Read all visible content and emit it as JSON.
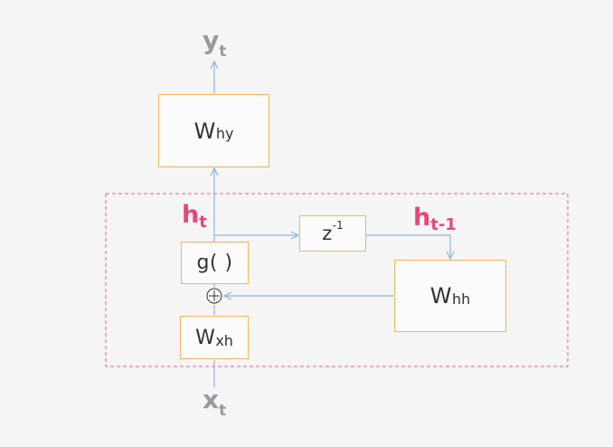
{
  "colors": {
    "background": "#f5f5f5",
    "box_border": "#f0b45a",
    "wire": "#8fb3d9",
    "state_label": "#e8457a",
    "io_label": "#9a9a9a",
    "dashed_frame": "#e0608c"
  },
  "output": {
    "symbol": "y",
    "subscript": "t"
  },
  "input": {
    "symbol": "x",
    "subscript": "t"
  },
  "boxes": {
    "why": {
      "main": "W",
      "sub": "hy"
    },
    "g": {
      "main": "g( )"
    },
    "z": {
      "main": "z",
      "sup": "-1"
    },
    "whh": {
      "main": "W",
      "sub": "hh"
    },
    "wxh": {
      "main": "W",
      "sub": "xh"
    }
  },
  "states": {
    "ht": {
      "main": "h",
      "sub": "t"
    },
    "htm1": {
      "main": "h",
      "sub": "t-1"
    }
  },
  "sum_node": {
    "symbol": "+"
  }
}
